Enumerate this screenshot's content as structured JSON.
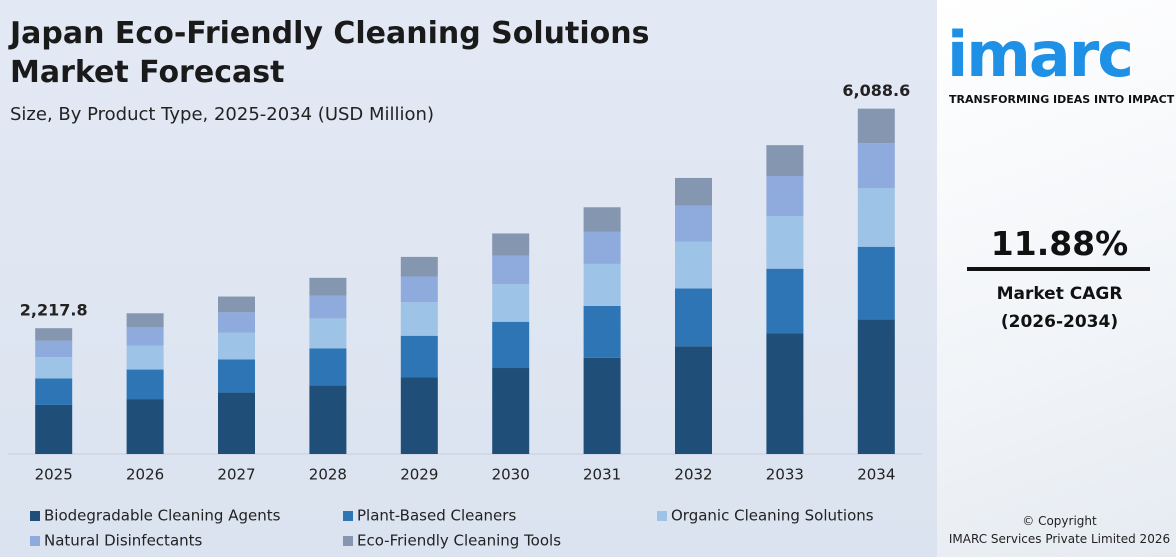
{
  "chart_data": {
    "type": "stacked-bar",
    "title": "Japan Eco-Friendly Cleaning Solutions Market Forecast",
    "subtitle": "Size, By Product Type, 2025-2034 (USD Million)",
    "categories": [
      "2025",
      "2026",
      "2027",
      "2028",
      "2029",
      "2030",
      "2031",
      "2032",
      "2033",
      "2034"
    ],
    "series": [
      {
        "name": "Biodegradable Cleaning Agents",
        "color": "#1f4e79",
        "values": [
          865,
          968,
          1083,
          1211,
          1355,
          1516,
          1697,
          1898,
          2124,
          2375
        ]
      },
      {
        "name": "Plant-Based Cleaners",
        "color": "#2e75b6",
        "values": [
          466,
          521,
          583,
          652,
          730,
          816,
          914,
          1022,
          1143,
          1279
        ]
      },
      {
        "name": "Organic Cleaning Solutions",
        "color": "#9dc3e6",
        "values": [
          377,
          422,
          472,
          528,
          591,
          661,
          740,
          827,
          926,
          1035
        ]
      },
      {
        "name": "Natural Disinfectants",
        "color": "#8faadc",
        "values": [
          288,
          322,
          361,
          404,
          452,
          505,
          565,
          633,
          708,
          792
        ]
      },
      {
        "name": "Eco-Friendly Cleaning Tools",
        "color": "#8496b0",
        "values": [
          222,
          248,
          277,
          311,
          347,
          390,
          434,
          487,
          544,
          608
        ]
      }
    ],
    "ylim": [
      0,
      6400
    ],
    "annotations": [
      {
        "category": "2025",
        "value": 2217.8,
        "label": "2,217.8"
      },
      {
        "category": "2034",
        "value": 6088.6,
        "label": "6,088.6"
      }
    ]
  },
  "sidebar": {
    "logo": "imarc",
    "tagline": "TRANSFORMING IDEAS INTO IMPACT",
    "cagr": "11.88%",
    "cagr_label": "Market CAGR",
    "cagr_period": "(2026-2034)",
    "copyright": "© Copyright",
    "company": "IMARC Services Private Limited 2026"
  }
}
